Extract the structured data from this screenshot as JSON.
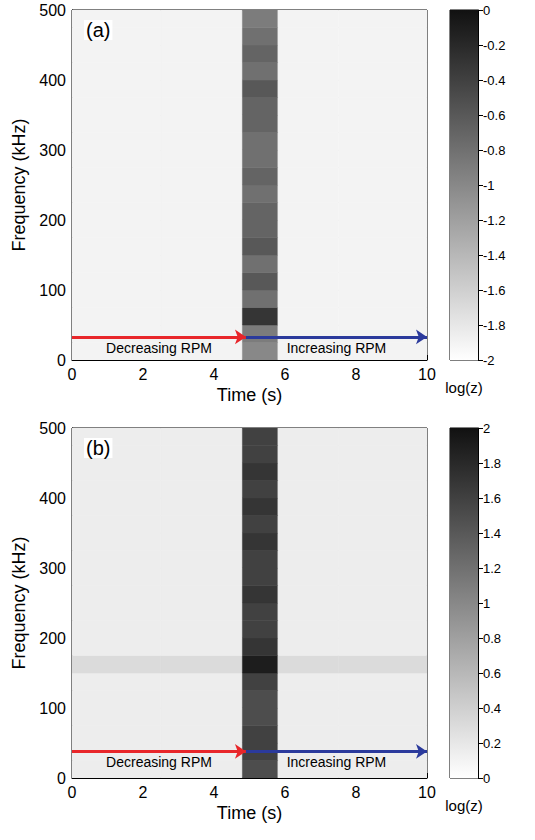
{
  "chart_data": [
    {
      "type": "heatmap",
      "title": "(a)",
      "x_label": "Time (s)",
      "y_label": "Frequency (kHz)",
      "xlim": [
        0,
        10
      ],
      "xticks": [
        0,
        2,
        4,
        6,
        8,
        10
      ],
      "ylim": [
        0,
        500
      ],
      "yticks": [
        0,
        100,
        200,
        300,
        400,
        500
      ],
      "grid": false,
      "time_edges": [
        0,
        2.5,
        4.8,
        5.8,
        7.5,
        10
      ],
      "freq_edges": [
        0,
        25,
        50,
        75,
        100,
        125,
        150,
        175,
        200,
        225,
        250,
        275,
        300,
        325,
        350,
        375,
        400,
        425,
        450,
        475,
        500
      ],
      "z": [
        [
          -1.9,
          -1.9,
          -1.0,
          -1.9,
          -1.9
        ],
        [
          -1.9,
          -1.9,
          -0.9,
          -1.9,
          -1.9
        ],
        [
          -1.9,
          -1.9,
          -0.3,
          -1.9,
          -1.9
        ],
        [
          -1.9,
          -1.9,
          -0.8,
          -1.9,
          -1.9
        ],
        [
          -1.9,
          -1.9,
          -0.6,
          -1.9,
          -1.9
        ],
        [
          -1.9,
          -1.9,
          -0.8,
          -1.9,
          -1.9
        ],
        [
          -1.9,
          -1.9,
          -0.6,
          -1.9,
          -1.9
        ],
        [
          -1.9,
          -1.9,
          -0.7,
          -1.9,
          -1.9
        ],
        [
          -1.9,
          -1.9,
          -0.7,
          -1.9,
          -1.9
        ],
        [
          -1.9,
          -1.9,
          -0.8,
          -1.9,
          -1.9
        ],
        [
          -1.9,
          -1.9,
          -0.7,
          -1.9,
          -1.9
        ],
        [
          -1.9,
          -1.9,
          -0.8,
          -1.9,
          -1.9
        ],
        [
          -1.9,
          -1.9,
          -0.8,
          -1.9,
          -1.9
        ],
        [
          -1.9,
          -1.9,
          -0.7,
          -1.9,
          -1.9
        ],
        [
          -1.9,
          -1.9,
          -0.7,
          -1.9,
          -1.9
        ],
        [
          -1.9,
          -1.9,
          -0.6,
          -1.9,
          -1.9
        ],
        [
          -1.9,
          -1.9,
          -0.8,
          -1.9,
          -1.9
        ],
        [
          -1.9,
          -1.9,
          -0.7,
          -1.9,
          -1.9
        ],
        [
          -1.9,
          -1.9,
          -0.8,
          -1.9,
          -1.9
        ],
        [
          -1.9,
          -1.9,
          -0.9,
          -1.9,
          -1.9
        ]
      ],
      "colorbar": {
        "range": [
          -2,
          0
        ],
        "ticks": [
          -2,
          -1.8,
          -1.6,
          -1.4,
          -1.2,
          -1,
          -0.8,
          -0.6,
          -0.4,
          -0.2,
          0
        ],
        "label": "log(z)"
      },
      "annotations": [
        {
          "text": "Decreasing RPM",
          "x": [
            0,
            4.9
          ],
          "y": 33,
          "color": "#e8262a"
        },
        {
          "text": "Increasing RPM",
          "x": [
            4.9,
            10
          ],
          "y": 33,
          "color": "#2b3a9c"
        }
      ]
    },
    {
      "type": "heatmap",
      "title": "(b)",
      "x_label": "Time (s)",
      "y_label": "Frequency (kHz)",
      "xlim": [
        0,
        10
      ],
      "xticks": [
        0,
        2,
        4,
        6,
        8,
        10
      ],
      "ylim": [
        0,
        500
      ],
      "yticks": [
        0,
        100,
        200,
        300,
        400,
        500
      ],
      "grid": false,
      "time_edges": [
        0,
        2.5,
        4.8,
        5.8,
        7.5,
        10
      ],
      "freq_edges": [
        0,
        25,
        50,
        75,
        100,
        125,
        150,
        175,
        200,
        225,
        250,
        275,
        300,
        325,
        350,
        375,
        400,
        425,
        450,
        475,
        500
      ],
      "z": [
        [
          0.15,
          0.15,
          1.5,
          0.15,
          0.15
        ],
        [
          0.15,
          0.15,
          1.6,
          0.15,
          0.15
        ],
        [
          0.15,
          0.15,
          1.6,
          0.15,
          0.15
        ],
        [
          0.15,
          0.15,
          1.5,
          0.15,
          0.15
        ],
        [
          0.15,
          0.15,
          1.5,
          0.15,
          0.15
        ],
        [
          0.15,
          0.15,
          1.6,
          0.15,
          0.15
        ],
        [
          0.3,
          0.3,
          1.9,
          0.3,
          0.3
        ],
        [
          0.15,
          0.15,
          1.7,
          0.15,
          0.15
        ],
        [
          0.15,
          0.15,
          1.6,
          0.15,
          0.15
        ],
        [
          0.15,
          0.15,
          1.6,
          0.15,
          0.15
        ],
        [
          0.15,
          0.15,
          1.7,
          0.15,
          0.15
        ],
        [
          0.15,
          0.15,
          1.6,
          0.15,
          0.15
        ],
        [
          0.15,
          0.15,
          1.6,
          0.15,
          0.15
        ],
        [
          0.15,
          0.15,
          1.7,
          0.15,
          0.15
        ],
        [
          0.15,
          0.15,
          1.6,
          0.15,
          0.15
        ],
        [
          0.15,
          0.15,
          1.7,
          0.15,
          0.15
        ],
        [
          0.15,
          0.15,
          1.6,
          0.15,
          0.15
        ],
        [
          0.15,
          0.15,
          1.7,
          0.15,
          0.15
        ],
        [
          0.15,
          0.15,
          1.6,
          0.15,
          0.15
        ],
        [
          0.15,
          0.15,
          1.6,
          0.15,
          0.15
        ]
      ],
      "colorbar": {
        "range": [
          0,
          2
        ],
        "ticks": [
          0,
          0.2,
          0.4,
          0.6,
          0.8,
          1,
          1.2,
          1.4,
          1.6,
          1.8,
          2
        ],
        "label": "log(z)"
      },
      "annotations": [
        {
          "text": "Decreasing RPM",
          "x": [
            0,
            4.9
          ],
          "y": 38,
          "color": "#e8262a"
        },
        {
          "text": "Increasing RPM",
          "x": [
            4.9,
            10
          ],
          "y": 38,
          "color": "#2b3a9c"
        }
      ]
    }
  ]
}
